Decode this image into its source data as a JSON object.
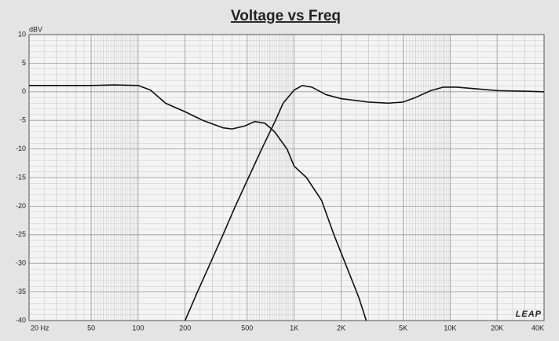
{
  "chart_data": {
    "type": "line",
    "title": "Voltage vs Freq",
    "ylabel": "dBV",
    "logo": "LEAP",
    "xscale": "log",
    "grid": true,
    "xlim": [
      20,
      40000
    ],
    "ylim": [
      -40,
      10
    ],
    "xticks": [
      {
        "value": 20,
        "label": "20 Hz"
      },
      50,
      100,
      200,
      500,
      {
        "value": 1000,
        "label": "1K"
      },
      {
        "value": 2000,
        "label": "2K"
      },
      {
        "value": 5000,
        "label": "5K"
      },
      {
        "value": 10000,
        "label": "10K"
      },
      {
        "value": 20000,
        "label": "20K"
      },
      {
        "value": 40000,
        "label": "40K"
      }
    ],
    "yticks": [
      10,
      5,
      0,
      -5,
      -10,
      -15,
      -20,
      -25,
      -30,
      -35,
      -40
    ],
    "series": [
      {
        "color": "#111111",
        "x": [
          20,
          50,
          70,
          100,
          120,
          150,
          200,
          260,
          350,
          400,
          480,
          560,
          650,
          750,
          900,
          1000,
          1200,
          1500,
          1800,
          2200,
          2600,
          2900
        ],
        "values": [
          1.1,
          1.1,
          1.2,
          1.1,
          0.3,
          -2,
          -3.5,
          -5,
          -6.3,
          -6.5,
          -6,
          -5.2,
          -5.5,
          -7,
          -10,
          -13,
          -15,
          -19,
          -25,
          -31,
          -36,
          -40
        ]
      },
      {
        "color": "#111111",
        "x": [
          200,
          240,
          290,
          350,
          420,
          510,
          620,
          760,
          850,
          1000,
          1130,
          1300,
          1600,
          2000,
          3000,
          4000,
          5000,
          6000,
          7500,
          9000,
          11000,
          15000,
          20000,
          30000,
          40000
        ],
        "values": [
          -40,
          -35,
          -30,
          -25,
          -20,
          -15,
          -10,
          -5,
          -2,
          0.3,
          1.1,
          0.8,
          -0.5,
          -1.2,
          -1.8,
          -2,
          -1.8,
          -1,
          0.2,
          0.8,
          0.8,
          0.5,
          0.2,
          0.1,
          0
        ]
      }
    ]
  }
}
